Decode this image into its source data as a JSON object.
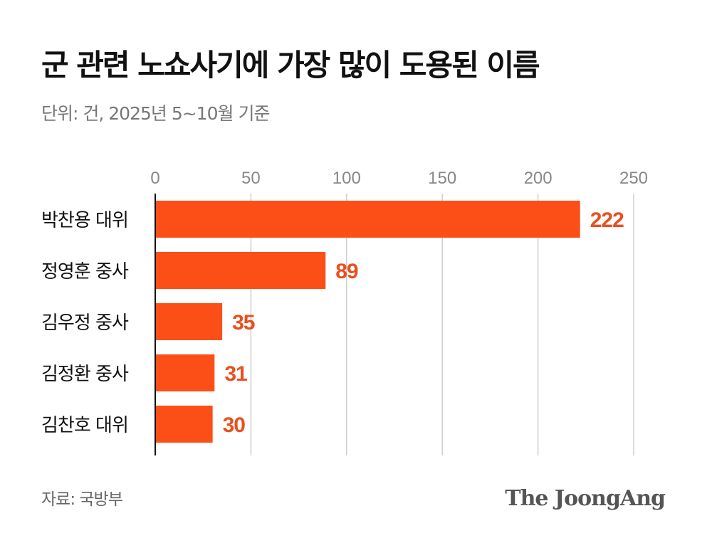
{
  "chart_data": {
    "type": "bar",
    "orientation": "horizontal",
    "title": "군 관련 노쇼사기에 가장 많이 도용된 이름",
    "subtitle": "단위: 건, 2025년 5~10월 기준",
    "categories": [
      "박찬용 대위",
      "정영훈 중사",
      "김우정 중사",
      "김정환 중사",
      "김찬호 대위"
    ],
    "values": [
      222,
      89,
      35,
      31,
      30
    ],
    "xlim": [
      0,
      250
    ],
    "xticks": [
      0,
      50,
      100,
      150,
      200,
      250
    ],
    "grid": true,
    "bar_color": "#FC4F17",
    "label_color": "#E8501E",
    "source": "자료: 국방부"
  },
  "brand": "The JoongAng"
}
